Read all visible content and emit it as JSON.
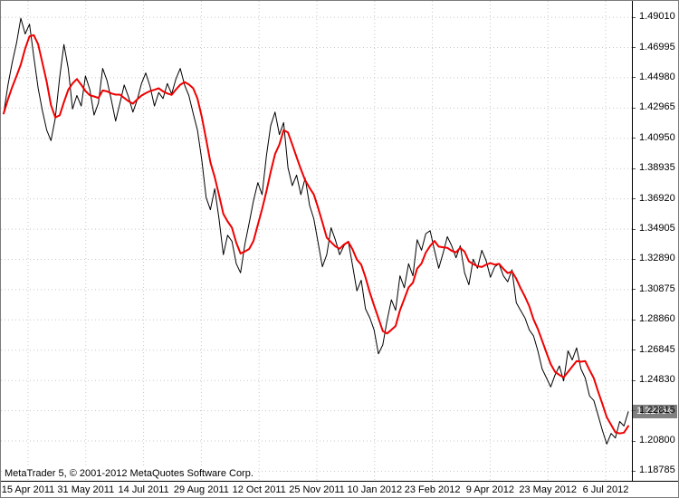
{
  "footer": {
    "copyright": "MetaTrader 5, © 2001-2012 MetaQuotes Software Corp."
  },
  "chart_data": {
    "type": "line",
    "title": "",
    "xlabel": "",
    "ylabel": "",
    "grid": true,
    "legend": "none",
    "ylim": [
      1.1815,
      1.501
    ],
    "current_price": "1.22754",
    "colors": {
      "grid": "#c8c8c8",
      "price": "#000000",
      "ma": "#f00000",
      "badge_bg": "#808080",
      "badge_text": "#ffffff",
      "axis_text": "#000000"
    },
    "x_ticks": [
      "15 Apr 2011",
      "31 May 2011",
      "14 Jul 2011",
      "29 Aug 2011",
      "12 Oct 2011",
      "25 Nov 2011",
      "10 Jan 2012",
      "23 Feb 2012",
      "9 Apr 2012",
      "23 May 2012",
      "6 Jul 2012"
    ],
    "y_ticks": [
      "1.49010",
      "1.46995",
      "1.44980",
      "1.42965",
      "1.40950",
      "1.38935",
      "1.36920",
      "1.34905",
      "1.32890",
      "1.30875",
      "1.28860",
      "1.26845",
      "1.24830",
      "1.22815",
      "1.20800",
      "1.18785"
    ],
    "series": [
      {
        "name": "price",
        "color_key": "price",
        "width": 1,
        "values": [
          1.426,
          1.445,
          1.46,
          1.473,
          1.4895,
          1.479,
          1.4855,
          1.464,
          1.443,
          1.428,
          1.415,
          1.408,
          1.423,
          1.45,
          1.472,
          1.456,
          1.429,
          1.438,
          1.431,
          1.451,
          1.442,
          1.425,
          1.433,
          1.456,
          1.448,
          1.435,
          1.421,
          1.433,
          1.445,
          1.437,
          1.427,
          1.435,
          1.446,
          1.453,
          1.444,
          1.431,
          1.44,
          1.436,
          1.446,
          1.439,
          1.449,
          1.456,
          1.445,
          1.438,
          1.426,
          1.415,
          1.395,
          1.37,
          1.362,
          1.376,
          1.356,
          1.332,
          1.345,
          1.341,
          1.326,
          1.32,
          1.339,
          1.353,
          1.368,
          1.38,
          1.372,
          1.398,
          1.418,
          1.427,
          1.412,
          1.42,
          1.39,
          1.378,
          1.385,
          1.372,
          1.383,
          1.365,
          1.356,
          1.34,
          1.324,
          1.332,
          1.35,
          1.342,
          1.332,
          1.338,
          1.341,
          1.325,
          1.308,
          1.315,
          1.296,
          1.29,
          1.282,
          1.266,
          1.272,
          1.288,
          1.302,
          1.295,
          1.318,
          1.31,
          1.326,
          1.318,
          1.342,
          1.335,
          1.346,
          1.348,
          1.335,
          1.323,
          1.333,
          1.344,
          1.338,
          1.33,
          1.338,
          1.32,
          1.312,
          1.329,
          1.323,
          1.335,
          1.328,
          1.317,
          1.324,
          1.326,
          1.318,
          1.314,
          1.322,
          1.3,
          1.295,
          1.29,
          1.282,
          1.278,
          1.268,
          1.256,
          1.25,
          1.244,
          1.252,
          1.258,
          1.248,
          1.268,
          1.262,
          1.27,
          1.256,
          1.25,
          1.238,
          1.235,
          1.225,
          1.215,
          1.206,
          1.213,
          1.21,
          1.221,
          1.218,
          1.2275
        ]
      },
      {
        "name": "moving-average",
        "color_key": "ma",
        "width": 2,
        "derived_from": "price",
        "method": "sma",
        "period": 5
      }
    ]
  }
}
